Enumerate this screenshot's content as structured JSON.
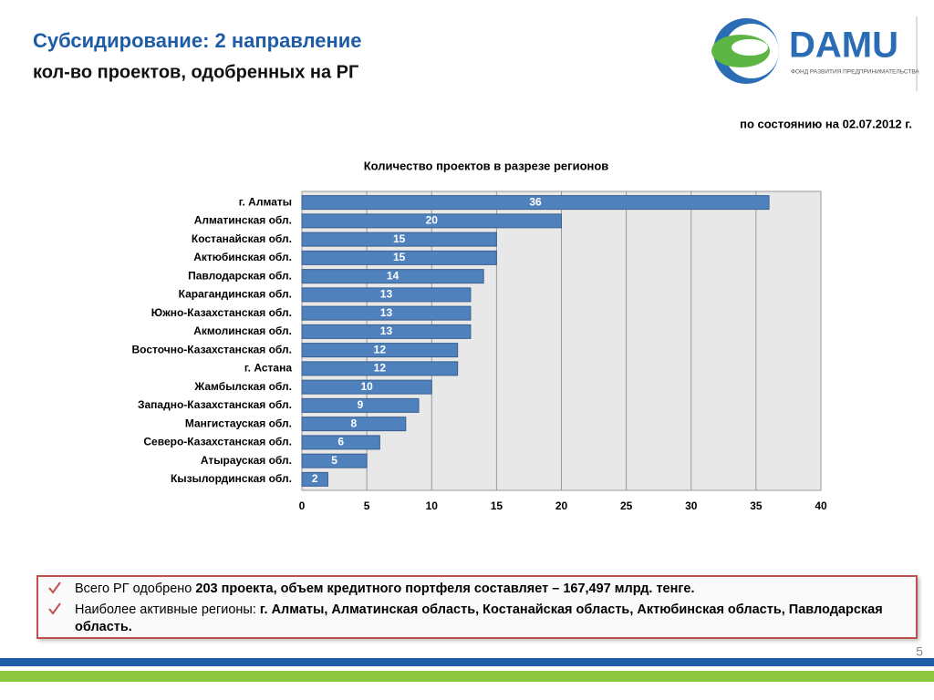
{
  "header": {
    "title": "Субсидирование: 2 направление",
    "subtitle": "кол-во проектов, одобренных на РГ",
    "date_note": "по состоянию на 02.07.2012 г."
  },
  "logo": {
    "name": "DAMU",
    "tagline": "ФОНД РАЗВИТИЯ ПРЕДПРИНИМАТЕЛЬСТВА"
  },
  "chart_data": {
    "type": "hbar",
    "title": "Количество проектов в разрезе регионов",
    "categories": [
      "г. Алматы",
      "Алматинская обл.",
      "Костанайская обл.",
      "Актюбинская обл.",
      "Павлодарская обл.",
      "Карагандинская обл.",
      "Южно-Казахстанская обл.",
      "Акмолинская обл.",
      "Восточно-Казахстанская обл.",
      "г. Астана",
      "Жамбылская обл.",
      "Западно-Казахстанская обл.",
      "Мангистауская обл.",
      "Северо-Казахстанская обл.",
      "Атырауская обл.",
      "Кызылординская обл."
    ],
    "values": [
      36,
      20,
      15,
      15,
      14,
      13,
      13,
      13,
      12,
      12,
      10,
      9,
      8,
      6,
      5,
      2
    ],
    "color": "#4f81bd",
    "xlim": [
      0,
      40
    ],
    "xticks": [
      0,
      5,
      10,
      15,
      20,
      25,
      30,
      35,
      40
    ],
    "grid": true
  },
  "notes": [
    {
      "lead": "Всего РГ одобрено",
      "emphasis": "203  проекта, объем кредитного портфеля составляет – 167,497 млрд. тенге."
    },
    {
      "lead": "Наиболее активные регионы:",
      "emphasis": "г. Алматы, Алматинская область, Костанайская область, Актюбинская область, Павлодарская область."
    }
  ],
  "page_number": 5
}
